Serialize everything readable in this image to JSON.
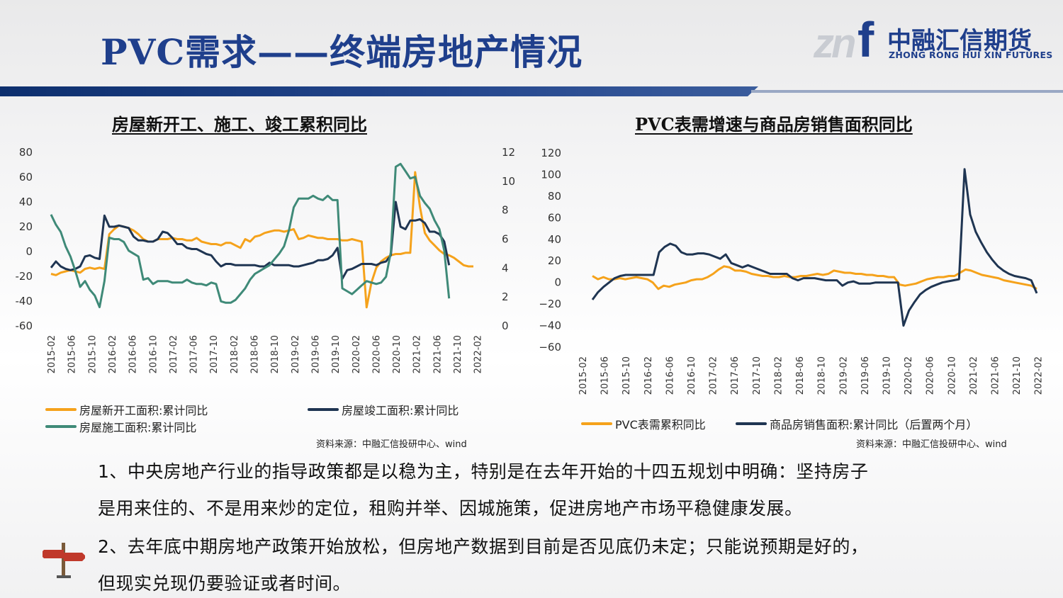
{
  "header": {
    "title": "PVC需求——终端房地产情况",
    "logo_cn": "中融汇信期货",
    "logo_en": "ZHONG RONG HUI XIN FUTURES",
    "logo_mark": "zn",
    "logo_f": "f"
  },
  "colors": {
    "orange": "#f5a21b",
    "navy": "#1f3552",
    "green": "#3f8a78",
    "brand": "#1f3f8c"
  },
  "chart_data": [
    {
      "type": "line",
      "title": "房屋新开工、施工、竣工累积同比",
      "x_ticks": [
        "2015-02",
        "2015-06",
        "2015-10",
        "2016-02",
        "2016-06",
        "2016-10",
        "2017-02",
        "2017-06",
        "2017-10",
        "2018-02",
        "2018-06",
        "2018-10",
        "2019-02",
        "2019-06",
        "2019-10",
        "2020-02",
        "2020-06",
        "2020-10",
        "2021-02",
        "2021-06",
        "2021-10",
        "2022-02"
      ],
      "y_left_ticks": [
        "80",
        "60",
        "40",
        "20",
        "0",
        "-20",
        "-40",
        "-60"
      ],
      "y_right_ticks": [
        "12",
        "10",
        "8",
        "6",
        "4",
        "2",
        "0"
      ],
      "ylim_left": [
        -60,
        80
      ],
      "ylim_right": [
        0,
        12
      ],
      "grid": false,
      "legend_position": "bottom",
      "series": [
        {
          "name": "房屋新开工面积:累计同比",
          "axis": "left",
          "color": "#f5a21b",
          "values": [
            -18,
            -19,
            -17,
            -16,
            -15,
            -16,
            -17,
            -14,
            -13,
            -14,
            -13,
            -14,
            14,
            18,
            21,
            20,
            19,
            17,
            14,
            10,
            8,
            8,
            10,
            10,
            10,
            11,
            10,
            10,
            9,
            9,
            11,
            8,
            7,
            6,
            6,
            5,
            7,
            7,
            5,
            3,
            10,
            8,
            12,
            13,
            15,
            16,
            17,
            17,
            16,
            17,
            18,
            10,
            11,
            13,
            12,
            11,
            11,
            10,
            10,
            10,
            9,
            9,
            10,
            9,
            8,
            -45,
            -25,
            -13,
            -8,
            -5,
            -3,
            -2,
            -2,
            -1,
            -1,
            64,
            36,
            15,
            9,
            5,
            1,
            -2,
            -3,
            -5,
            -8,
            -11,
            -12,
            -12
          ]
        },
        {
          "name": "房屋竣工面积:累计同比",
          "axis": "left",
          "color": "#1f3552",
          "values": [
            -13,
            -8,
            -12,
            -14,
            -15,
            -14,
            -12,
            -4,
            -3,
            -5,
            -6,
            29,
            20,
            20,
            21,
            20,
            19,
            12,
            9,
            9,
            8,
            8,
            10,
            16,
            15,
            11,
            6,
            6,
            3,
            2,
            2,
            0,
            -2,
            -3,
            -8,
            -12,
            -10,
            -10,
            -11,
            -11,
            -11,
            -11,
            -11,
            -12,
            -12,
            -9,
            -11,
            -11,
            -11,
            -11,
            -12,
            -12,
            -11,
            -10,
            -9,
            -7,
            -7,
            -6,
            -3,
            3,
            -22,
            -15,
            -14,
            -12,
            -10,
            -10,
            -10,
            -11,
            -9,
            -8,
            -3,
            40,
            20,
            18,
            25,
            25,
            26,
            23,
            16,
            16,
            14,
            8,
            -11
          ]
        },
        {
          "name": "房屋施工面积:累计同比",
          "axis": "right",
          "color": "#3f8a78",
          "values": [
            7.7,
            7.0,
            6.5,
            5.5,
            4.8,
            3.8,
            2.7,
            3.1,
            2.5,
            2.1,
            1.3,
            3.1,
            6.1,
            6.0,
            6.0,
            5.8,
            5.2,
            5.0,
            4.8,
            3.2,
            3.3,
            2.9,
            3.1,
            3.1,
            3.1,
            3.0,
            3.0,
            3.0,
            3.2,
            3.0,
            2.9,
            2.9,
            2.8,
            3.0,
            2.9,
            1.7,
            1.6,
            1.6,
            1.8,
            2.2,
            2.6,
            3.2,
            3.6,
            3.8,
            4.0,
            4.2,
            4.6,
            5.0,
            5.5,
            6.6,
            8.2,
            8.8,
            8.8,
            8.8,
            9.0,
            8.8,
            8.7,
            9.0,
            8.7,
            8.7,
            2.6,
            2.4,
            2.2,
            2.5,
            2.8,
            3.1,
            3.0,
            2.9,
            3.0,
            3.4,
            5.1,
            11.0,
            11.2,
            10.7,
            10.2,
            10.3,
            9.0,
            8.5,
            8.1,
            7.3,
            6.7,
            5.2,
            1.9
          ]
        }
      ],
      "legend": [
        "房屋新开工面积:累计同比",
        "房屋竣工面积:累计同比",
        "房屋施工面积:累计同比"
      ],
      "source": "资料来源：中融汇信投研中心、wind"
    },
    {
      "type": "line",
      "title": "PVC表需增速与商品房销售面积同比",
      "x_ticks": [
        "2015-02",
        "2015-06",
        "2015-10",
        "2016-02",
        "2016-06",
        "2016-10",
        "2017-02",
        "2017-06",
        "2017-10",
        "2018-02",
        "2018-06",
        "2018-10",
        "2019-02",
        "2019-06",
        "2019-10",
        "2020-02",
        "2020-06",
        "2020-10",
        "2021-02",
        "2021-06",
        "2021-10",
        "2022-02"
      ],
      "y_ticks": [
        "120",
        "100",
        "80",
        "60",
        "40",
        "20",
        "0",
        "−20",
        "−40",
        "−60"
      ],
      "ylim": [
        -60,
        120
      ],
      "grid": false,
      "legend_position": "bottom",
      "series": [
        {
          "name": "PVC表需累积同比",
          "color": "#f5a21b",
          "values": [
            6,
            3,
            5,
            3,
            3,
            4,
            3,
            4,
            5,
            4,
            3,
            0,
            -6,
            -3,
            -4,
            -2,
            -1,
            0,
            2,
            3,
            3,
            5,
            8,
            12,
            15,
            14,
            11,
            11,
            10,
            8,
            7,
            6,
            6,
            5,
            5,
            6,
            5,
            5,
            6,
            6,
            7,
            8,
            7,
            8,
            11,
            10,
            9,
            9,
            8,
            8,
            7,
            7,
            6,
            6,
            5,
            5,
            -2,
            -3,
            -2,
            -1,
            1,
            3,
            4,
            5,
            5,
            6,
            6,
            9,
            12,
            11,
            9,
            7,
            6,
            5,
            4,
            2,
            1,
            0,
            -1,
            -2,
            -3,
            -6
          ]
        },
        {
          "name": "商品房销售面积:累计同比（后置两个月）",
          "color": "#1f3552",
          "values": [
            -16,
            -9,
            -4,
            0,
            4,
            6,
            7,
            7,
            7,
            7,
            7,
            7,
            28,
            33,
            36,
            34,
            28,
            26,
            26,
            27,
            27,
            26,
            24,
            22,
            26,
            18,
            16,
            14,
            16,
            14,
            12,
            10,
            8,
            8,
            8,
            8,
            4,
            2,
            4,
            4,
            4,
            3,
            2,
            2,
            2,
            -3,
            0,
            1,
            -1,
            -1,
            -1,
            0,
            0,
            0,
            0,
            0,
            -40,
            -26,
            -18,
            -11,
            -7,
            -4,
            -2,
            0,
            1,
            2,
            3,
            105,
            63,
            47,
            37,
            28,
            21,
            15,
            11,
            8,
            6,
            5,
            4,
            2,
            -10
          ]
        }
      ],
      "legend": [
        "PVC表需累积同比",
        "商品房销售面积:累计同比（后置两个月）"
      ],
      "source": "资料来源：中融汇信投研中心、wind"
    }
  ],
  "paragraphs": {
    "p1_line1": "1、中央房地产行业的指导政策都是以稳为主，特别是在去年开始的十四五规划中明确：坚持房子",
    "p1_line2": "是用来住的、不是用来炒的定位，租购并举、因城施策，促进房地产市场平稳健康发展。",
    "p2_line1": "2、去年底中期房地产政策开始放松，但房地产数据到目前是否见底仍未定；只能说预期是好的，",
    "p2_line2": "但现实兑现仍要验证或者时间。"
  }
}
